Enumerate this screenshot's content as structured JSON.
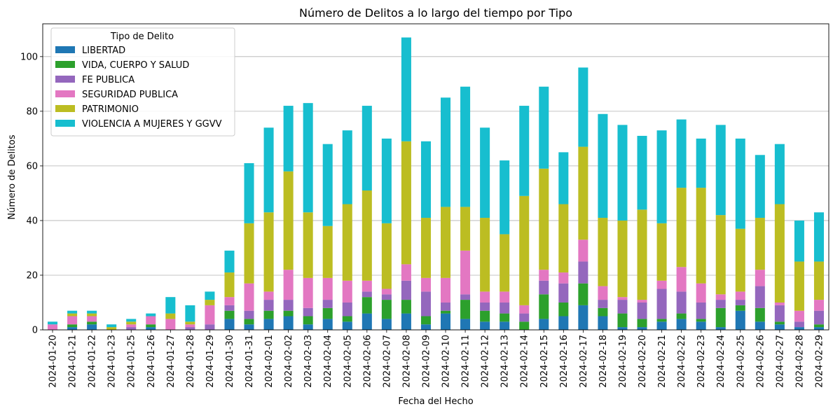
{
  "chart_data": {
    "type": "bar",
    "stacked": true,
    "title": "Número de Delitos a lo largo del tiempo por Tipo",
    "xlabel": "Fecha del Hecho",
    "ylabel": "Número de Delitos",
    "ylim": [
      0,
      112
    ],
    "yticks": [
      0,
      20,
      40,
      60,
      80,
      100
    ],
    "grid": "horizontal",
    "legend": {
      "title": "Tipo de Delito",
      "position": "top-left"
    },
    "categories": [
      "2024-01-20",
      "2024-01-21",
      "2024-01-22",
      "2024-01-23",
      "2024-01-25",
      "2024-01-26",
      "2024-01-27",
      "2024-01-28",
      "2024-01-29",
      "2024-01-30",
      "2024-01-31",
      "2024-02-01",
      "2024-02-02",
      "2024-02-03",
      "2024-02-04",
      "2024-02-05",
      "2024-02-06",
      "2024-02-07",
      "2024-02-08",
      "2024-02-09",
      "2024-02-10",
      "2024-02-11",
      "2024-02-12",
      "2024-02-13",
      "2024-02-14",
      "2024-02-15",
      "2024-02-16",
      "2024-02-17",
      "2024-02-18",
      "2024-02-19",
      "2024-02-20",
      "2024-02-21",
      "2024-02-22",
      "2024-02-23",
      "2024-02-24",
      "2024-02-25",
      "2024-02-26",
      "2024-02-27",
      "2024-02-28",
      "2024-02-29"
    ],
    "series": [
      {
        "name": "LIBERTAD",
        "color": "#1f77b4",
        "values": [
          0,
          1,
          2,
          0,
          0,
          1,
          0,
          0,
          0,
          4,
          2,
          4,
          5,
          2,
          4,
          3,
          6,
          4,
          6,
          2,
          6,
          4,
          3,
          3,
          0,
          4,
          5,
          9,
          5,
          1,
          1,
          3,
          4,
          3,
          1,
          7,
          3,
          2,
          1,
          1
        ]
      },
      {
        "name": "VIDA, CUERPO Y SALUD",
        "color": "#2ca02c",
        "values": [
          0,
          1,
          1,
          0,
          0,
          1,
          0,
          0,
          0,
          3,
          2,
          3,
          2,
          3,
          4,
          2,
          6,
          7,
          5,
          3,
          1,
          7,
          4,
          3,
          3,
          9,
          5,
          8,
          3,
          5,
          3,
          1,
          2,
          1,
          7,
          2,
          5,
          1,
          0,
          1
        ]
      },
      {
        "name": "FE PUBLICA",
        "color": "#9467bd",
        "values": [
          0,
          0,
          0,
          0,
          1,
          0,
          0,
          1,
          2,
          2,
          3,
          4,
          4,
          3,
          3,
          5,
          2,
          2,
          7,
          9,
          3,
          2,
          3,
          4,
          3,
          5,
          7,
          8,
          3,
          5,
          6,
          11,
          8,
          6,
          3,
          2,
          8,
          6,
          2,
          5
        ]
      },
      {
        "name": "SEGURIDAD PUBLICA",
        "color": "#e377c2",
        "values": [
          2,
          3,
          2,
          0,
          1,
          3,
          4,
          1,
          7,
          3,
          10,
          3,
          11,
          11,
          8,
          8,
          4,
          2,
          6,
          5,
          9,
          16,
          4,
          4,
          3,
          4,
          4,
          8,
          5,
          1,
          1,
          3,
          9,
          7,
          2,
          3,
          6,
          1,
          4,
          4
        ]
      },
      {
        "name": "PATRIMONIO",
        "color": "#bcbd22",
        "values": [
          0,
          1,
          1,
          1,
          1,
          0,
          2,
          1,
          2,
          9,
          22,
          29,
          36,
          24,
          19,
          28,
          33,
          24,
          45,
          22,
          26,
          16,
          27,
          21,
          40,
          37,
          25,
          34,
          25,
          28,
          33,
          21,
          29,
          35,
          29,
          23,
          19,
          36,
          18,
          14
        ]
      },
      {
        "name": "VIOLENCIA A MUJERES Y GGVV",
        "color": "#17becf",
        "values": [
          1,
          1,
          1,
          1,
          1,
          1,
          6,
          6,
          3,
          8,
          22,
          31,
          24,
          40,
          30,
          27,
          31,
          31,
          38,
          28,
          40,
          44,
          33,
          27,
          33,
          30,
          19,
          29,
          38,
          35,
          27,
          34,
          25,
          18,
          33,
          33,
          23,
          22,
          15,
          18
        ]
      }
    ]
  }
}
